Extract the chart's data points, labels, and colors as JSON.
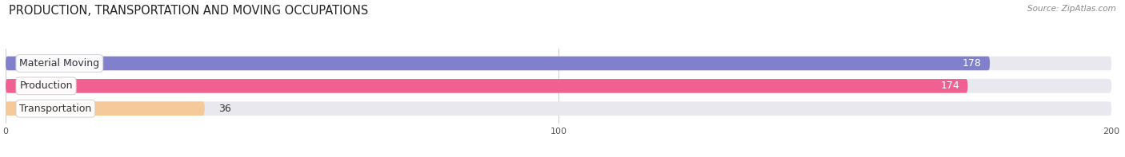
{
  "title": "PRODUCTION, TRANSPORTATION AND MOVING OCCUPATIONS",
  "source": "Source: ZipAtlas.com",
  "categories": [
    "Material Moving",
    "Production",
    "Transportation"
  ],
  "values": [
    178,
    174,
    36
  ],
  "bar_colors": [
    "#8080cc",
    "#f06090",
    "#f5c998"
  ],
  "bar_bg_color": "#e8e8ee",
  "xlim": [
    0,
    200
  ],
  "xticks": [
    0,
    100,
    200
  ],
  "title_fontsize": 10.5,
  "label_fontsize": 9,
  "value_fontsize": 9,
  "figsize": [
    14.06,
    1.97
  ],
  "dpi": 100
}
